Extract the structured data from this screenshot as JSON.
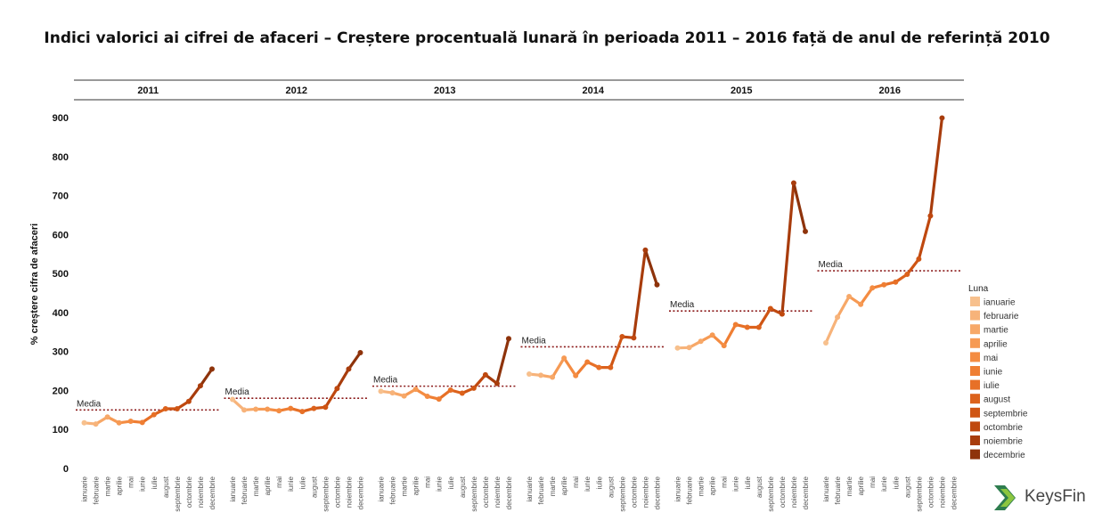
{
  "chart_data": {
    "type": "line",
    "title": "Indici valorici ai cifrei de afaceri – Creștere procentuală lunară în perioada 2011 – 2016 față de anul de referință 2010",
    "ylabel": "% creștere cifra de afaceri",
    "xlabel": "",
    "ylim": [
      0,
      900
    ],
    "yticks": [
      0,
      100,
      200,
      300,
      400,
      500,
      600,
      700,
      800,
      900
    ],
    "grid": false,
    "legend_title": "Luna",
    "legend_position": "right",
    "mean_label": "Media",
    "months": [
      "ianuarie",
      "februarie",
      "martie",
      "aprilie",
      "mai",
      "iunie",
      "iulie",
      "august",
      "septembrie",
      "octombrie",
      "noiembrie",
      "decembrie"
    ],
    "month_colors": [
      "#f7c08d",
      "#f7b37a",
      "#f7a868",
      "#f69a54",
      "#f48c42",
      "#ef7e33",
      "#e77027",
      "#dc621c",
      "#cf5514",
      "#bf480f",
      "#a83c0c",
      "#8e330b"
    ],
    "panels": [
      {
        "year": "2011",
        "values": [
          117,
          114,
          132,
          117,
          121,
          118,
          138,
          153,
          153,
          172,
          212,
          255
        ],
        "mean": 150
      },
      {
        "year": "2012",
        "values": [
          177,
          150,
          152,
          152,
          148,
          154,
          146,
          154,
          157,
          205,
          255,
          297
        ],
        "mean": 180
      },
      {
        "year": "2013",
        "values": [
          198,
          194,
          186,
          203,
          185,
          178,
          201,
          193,
          206,
          240,
          218,
          333
        ],
        "mean": 211
      },
      {
        "year": "2014",
        "values": [
          242,
          239,
          234,
          283,
          238,
          273,
          259,
          259,
          338,
          335,
          560,
          471
        ],
        "mean": 312
      },
      {
        "year": "2015",
        "values": [
          309,
          310,
          326,
          342,
          315,
          369,
          362,
          362,
          410,
          396,
          732,
          608
        ],
        "mean": 404
      },
      {
        "year": "2016",
        "values": [
          322,
          388,
          441,
          421,
          463,
          471,
          478,
          498,
          537,
          648,
          899
        ],
        "mean": 507
      }
    ]
  },
  "logo": {
    "text": "KeysFin"
  }
}
